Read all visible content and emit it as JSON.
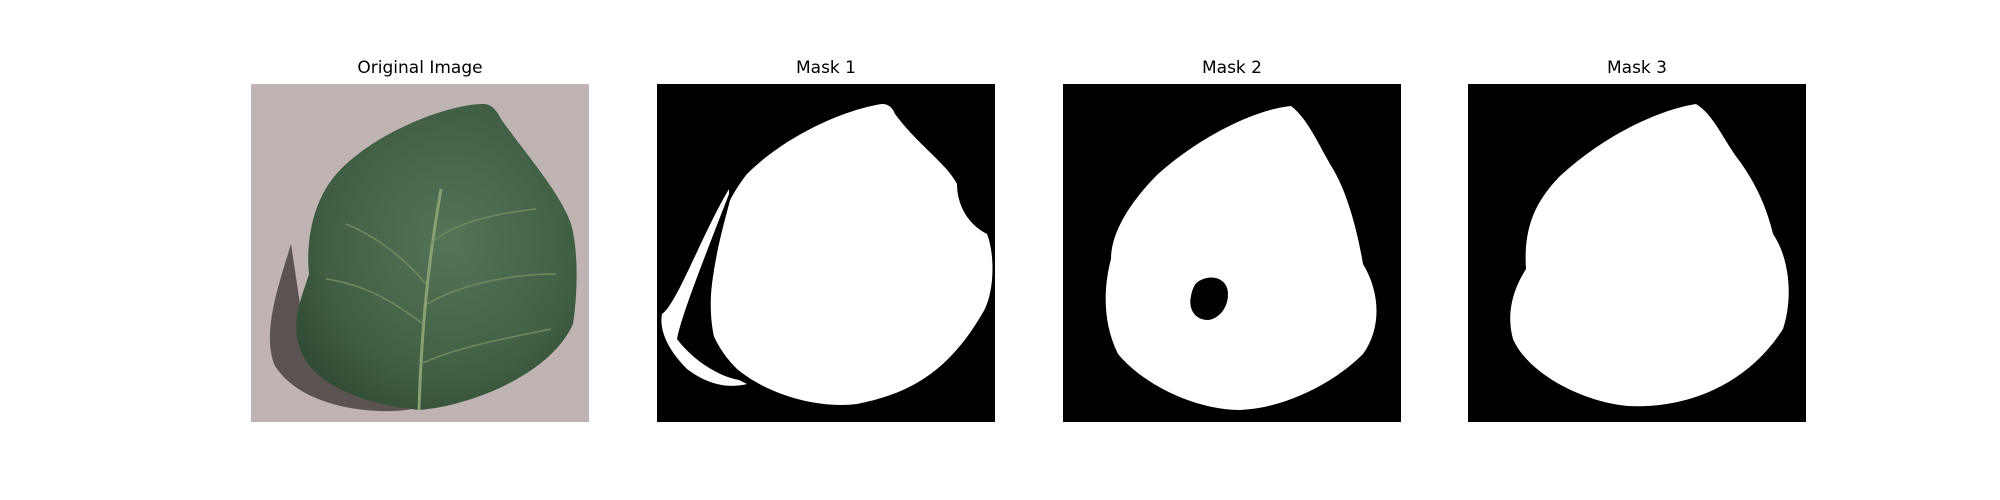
{
  "panels": [
    {
      "title": "Original Image",
      "kind": "photo"
    },
    {
      "title": "Mask 1",
      "kind": "mask"
    },
    {
      "title": "Mask 2",
      "kind": "mask"
    },
    {
      "title": "Mask 3",
      "kind": "mask"
    }
  ],
  "colors": {
    "background": "#ffffff",
    "photo_surface": "#bfb3b3",
    "leaf_dark": "#3b5a3e",
    "leaf_mid": "#4f6f50",
    "vein": "#7f9a66",
    "mask_background": "#000000",
    "mask_foreground": "#ffffff"
  }
}
